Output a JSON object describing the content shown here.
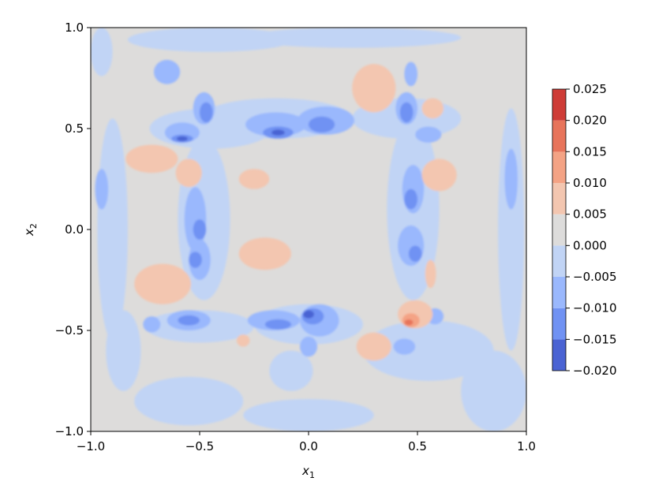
{
  "chart_data": {
    "type": "heatmap",
    "subtype": "filled-contour",
    "title": "",
    "xlabel": "x",
    "xlabel_sub": "1",
    "ylabel": "x",
    "ylabel_sub": "2",
    "xlim": [
      -1.0,
      1.0
    ],
    "ylim": [
      -1.0,
      1.0
    ],
    "xticks": [
      -1.0,
      -0.5,
      0.0,
      0.5,
      1.0
    ],
    "xtick_labels": [
      "−1.0",
      "−0.5",
      "0.0",
      "0.5",
      "1.0"
    ],
    "yticks": [
      -1.0,
      -0.5,
      0.0,
      0.5,
      1.0
    ],
    "ytick_labels": [
      "−1.0",
      "−0.5",
      "0.0",
      "0.5",
      "1.0"
    ],
    "grid": false,
    "colormap": "coolwarm",
    "background_level": [
      0.0,
      0.005
    ],
    "colorbar": {
      "placement": "right",
      "ticks": [
        -0.02,
        -0.015,
        -0.01,
        -0.005,
        0.0,
        0.005,
        0.01,
        0.015,
        0.02,
        0.025
      ],
      "tick_labels": [
        "−0.020",
        "−0.015",
        "−0.010",
        "−0.005",
        "0.000",
        "0.005",
        "0.010",
        "0.015",
        "0.020",
        "0.025"
      ],
      "levels": [
        {
          "range": [
            -0.02,
            -0.015
          ],
          "color": "#4a63d3"
        },
        {
          "range": [
            -0.015,
            -0.01
          ],
          "color": "#7092f3"
        },
        {
          "range": [
            -0.01,
            -0.005
          ],
          "color": "#9ab8fd"
        },
        {
          "range": [
            -0.005,
            0.0
          ],
          "color": "#c1d4f5"
        },
        {
          "range": [
            0.0,
            0.005
          ],
          "color": "#dddcdb"
        },
        {
          "range": [
            0.005,
            0.01
          ],
          "color": "#f3c6b0"
        },
        {
          "range": [
            0.01,
            0.015
          ],
          "color": "#f4a385"
        },
        {
          "range": [
            0.015,
            0.02
          ],
          "color": "#e7745b"
        },
        {
          "range": [
            0.02,
            0.025
          ],
          "color": "#ce3c37"
        }
      ]
    },
    "features": [
      {
        "x": -0.95,
        "y": 0.88,
        "rx": 0.05,
        "ry": 0.12,
        "level": -0.0025
      },
      {
        "x": -0.45,
        "y": 0.94,
        "rx": 0.38,
        "ry": 0.06,
        "level": -0.0025
      },
      {
        "x": 0.2,
        "y": 0.95,
        "rx": 0.5,
        "ry": 0.05,
        "level": -0.0025
      },
      {
        "x": -0.15,
        "y": 0.55,
        "rx": 0.35,
        "ry": 0.1,
        "level": -0.0025
      },
      {
        "x": -0.45,
        "y": 0.5,
        "rx": 0.28,
        "ry": 0.1,
        "level": -0.0025
      },
      {
        "x": 0.45,
        "y": 0.55,
        "rx": 0.25,
        "ry": 0.1,
        "level": -0.0025
      },
      {
        "x": -0.9,
        "y": 0.0,
        "rx": 0.07,
        "ry": 0.55,
        "level": -0.0025
      },
      {
        "x": 0.93,
        "y": 0.0,
        "rx": 0.06,
        "ry": 0.6,
        "level": -0.0025
      },
      {
        "x": -0.48,
        "y": 0.05,
        "rx": 0.12,
        "ry": 0.4,
        "level": -0.0025
      },
      {
        "x": 0.48,
        "y": 0.1,
        "rx": 0.12,
        "ry": 0.45,
        "level": -0.0025
      },
      {
        "x": -0.5,
        "y": -0.48,
        "rx": 0.25,
        "ry": 0.08,
        "level": -0.0025
      },
      {
        "x": 0.0,
        "y": -0.47,
        "rx": 0.25,
        "ry": 0.1,
        "level": -0.0025
      },
      {
        "x": 0.55,
        "y": -0.6,
        "rx": 0.3,
        "ry": 0.15,
        "level": -0.0025
      },
      {
        "x": 0.85,
        "y": -0.8,
        "rx": 0.15,
        "ry": 0.2,
        "level": -0.0025
      },
      {
        "x": -0.55,
        "y": -0.85,
        "rx": 0.25,
        "ry": 0.12,
        "level": -0.0025
      },
      {
        "x": 0.0,
        "y": -0.92,
        "rx": 0.3,
        "ry": 0.08,
        "level": -0.0025
      },
      {
        "x": -0.85,
        "y": -0.6,
        "rx": 0.08,
        "ry": 0.2,
        "level": -0.0025
      },
      {
        "x": -0.08,
        "y": -0.7,
        "rx": 0.1,
        "ry": 0.1,
        "level": -0.0025
      },
      {
        "x": -0.65,
        "y": 0.78,
        "rx": 0.06,
        "ry": 0.06,
        "level": -0.0075
      },
      {
        "x": -0.48,
        "y": 0.6,
        "rx": 0.05,
        "ry": 0.08,
        "level": -0.0075
      },
      {
        "x": -0.58,
        "y": 0.48,
        "rx": 0.08,
        "ry": 0.05,
        "level": -0.0075
      },
      {
        "x": -0.15,
        "y": 0.52,
        "rx": 0.14,
        "ry": 0.06,
        "level": -0.0075
      },
      {
        "x": 0.08,
        "y": 0.54,
        "rx": 0.13,
        "ry": 0.07,
        "level": -0.0075
      },
      {
        "x": 0.45,
        "y": 0.6,
        "rx": 0.05,
        "ry": 0.08,
        "level": -0.0075
      },
      {
        "x": 0.55,
        "y": 0.47,
        "rx": 0.06,
        "ry": 0.04,
        "level": -0.0075
      },
      {
        "x": 0.47,
        "y": 0.77,
        "rx": 0.03,
        "ry": 0.06,
        "level": -0.0075
      },
      {
        "x": -0.52,
        "y": 0.05,
        "rx": 0.05,
        "ry": 0.16,
        "level": -0.0075
      },
      {
        "x": -0.5,
        "y": -0.15,
        "rx": 0.05,
        "ry": 0.1,
        "level": -0.0075
      },
      {
        "x": 0.48,
        "y": 0.2,
        "rx": 0.05,
        "ry": 0.12,
        "level": -0.0075
      },
      {
        "x": 0.47,
        "y": -0.08,
        "rx": 0.06,
        "ry": 0.1,
        "level": -0.0075
      },
      {
        "x": -0.55,
        "y": -0.45,
        "rx": 0.1,
        "ry": 0.05,
        "level": -0.0075
      },
      {
        "x": -0.72,
        "y": -0.47,
        "rx": 0.04,
        "ry": 0.04,
        "level": -0.0075
      },
      {
        "x": -0.16,
        "y": -0.45,
        "rx": 0.12,
        "ry": 0.05,
        "level": -0.0075
      },
      {
        "x": 0.05,
        "y": -0.45,
        "rx": 0.09,
        "ry": 0.08,
        "level": -0.0075
      },
      {
        "x": 0.0,
        "y": -0.58,
        "rx": 0.04,
        "ry": 0.05,
        "level": -0.0075
      },
      {
        "x": 0.44,
        "y": -0.58,
        "rx": 0.05,
        "ry": 0.04,
        "level": -0.0075
      },
      {
        "x": 0.58,
        "y": -0.43,
        "rx": 0.04,
        "ry": 0.04,
        "level": -0.0075
      },
      {
        "x": -0.95,
        "y": 0.2,
        "rx": 0.03,
        "ry": 0.1,
        "level": -0.0075
      },
      {
        "x": 0.93,
        "y": 0.25,
        "rx": 0.03,
        "ry": 0.15,
        "level": -0.0075
      },
      {
        "x": -0.47,
        "y": 0.58,
        "rx": 0.03,
        "ry": 0.05,
        "level": -0.0125
      },
      {
        "x": -0.58,
        "y": 0.45,
        "rx": 0.05,
        "ry": 0.02,
        "level": -0.0125
      },
      {
        "x": -0.14,
        "y": 0.48,
        "rx": 0.07,
        "ry": 0.03,
        "level": -0.0125
      },
      {
        "x": 0.06,
        "y": 0.52,
        "rx": 0.06,
        "ry": 0.04,
        "level": -0.0125
      },
      {
        "x": 0.45,
        "y": 0.58,
        "rx": 0.03,
        "ry": 0.05,
        "level": -0.0125
      },
      {
        "x": -0.5,
        "y": 0.0,
        "rx": 0.03,
        "ry": 0.05,
        "level": -0.0125
      },
      {
        "x": -0.52,
        "y": -0.15,
        "rx": 0.03,
        "ry": 0.04,
        "level": -0.0125
      },
      {
        "x": 0.47,
        "y": 0.15,
        "rx": 0.03,
        "ry": 0.05,
        "level": -0.0125
      },
      {
        "x": 0.49,
        "y": -0.12,
        "rx": 0.03,
        "ry": 0.04,
        "level": -0.0125
      },
      {
        "x": -0.55,
        "y": -0.45,
        "rx": 0.05,
        "ry": 0.025,
        "level": -0.0125
      },
      {
        "x": -0.14,
        "y": -0.47,
        "rx": 0.06,
        "ry": 0.025,
        "level": -0.0125
      },
      {
        "x": 0.02,
        "y": -0.43,
        "rx": 0.05,
        "ry": 0.04,
        "level": -0.0125
      },
      {
        "x": -0.58,
        "y": 0.45,
        "rx": 0.025,
        "ry": 0.012,
        "level": -0.0175
      },
      {
        "x": -0.14,
        "y": 0.48,
        "rx": 0.03,
        "ry": 0.015,
        "level": -0.0175
      },
      {
        "x": 0.0,
        "y": -0.42,
        "rx": 0.025,
        "ry": 0.02,
        "level": -0.0175
      },
      {
        "x": 0.3,
        "y": 0.7,
        "rx": 0.1,
        "ry": 0.12,
        "level": 0.0075
      },
      {
        "x": 0.57,
        "y": 0.6,
        "rx": 0.05,
        "ry": 0.05,
        "level": 0.0075
      },
      {
        "x": -0.72,
        "y": 0.35,
        "rx": 0.12,
        "ry": 0.07,
        "level": 0.0075
      },
      {
        "x": -0.55,
        "y": 0.28,
        "rx": 0.06,
        "ry": 0.07,
        "level": 0.0075
      },
      {
        "x": -0.25,
        "y": 0.25,
        "rx": 0.07,
        "ry": 0.05,
        "level": 0.0075
      },
      {
        "x": 0.6,
        "y": 0.27,
        "rx": 0.08,
        "ry": 0.08,
        "level": 0.0075
      },
      {
        "x": -0.67,
        "y": -0.27,
        "rx": 0.13,
        "ry": 0.1,
        "level": 0.0075
      },
      {
        "x": -0.2,
        "y": -0.12,
        "rx": 0.12,
        "ry": 0.08,
        "level": 0.0075
      },
      {
        "x": 0.49,
        "y": -0.42,
        "rx": 0.08,
        "ry": 0.07,
        "level": 0.0075
      },
      {
        "x": 0.3,
        "y": -0.58,
        "rx": 0.08,
        "ry": 0.07,
        "level": 0.0075
      },
      {
        "x": 0.56,
        "y": -0.22,
        "rx": 0.025,
        "ry": 0.07,
        "level": 0.0075
      },
      {
        "x": -0.3,
        "y": -0.55,
        "rx": 0.03,
        "ry": 0.03,
        "level": 0.0075
      },
      {
        "x": 0.47,
        "y": -0.45,
        "rx": 0.04,
        "ry": 0.035,
        "level": 0.0125
      },
      {
        "x": 0.46,
        "y": -0.46,
        "rx": 0.02,
        "ry": 0.015,
        "level": 0.0175
      }
    ]
  }
}
